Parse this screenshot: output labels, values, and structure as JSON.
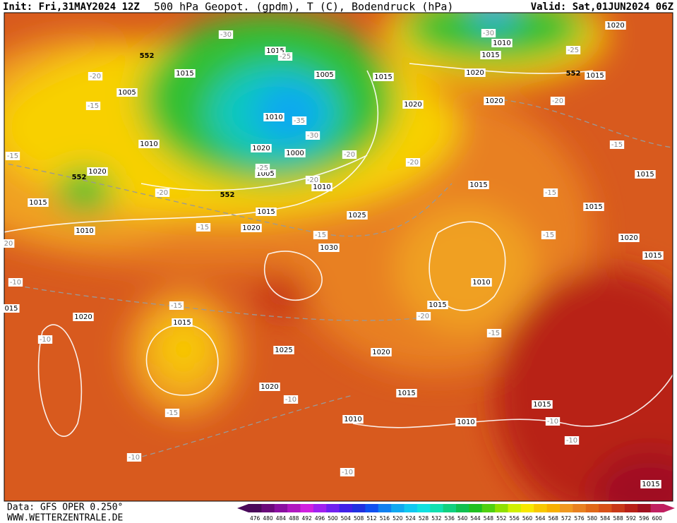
{
  "header": {
    "init": "Init: Fri,31MAY2024 12Z",
    "title": "500 hPa Geopot. (gpdm), T (C), Bodendruck (hPa)",
    "valid": "Valid: Sat,01JUN2024 06Z"
  },
  "footer": {
    "data": "Data: GFS OPER 0.250°",
    "site": "WWW.WETTERZENTRALE.DE"
  },
  "scale": {
    "values": [
      476,
      480,
      484,
      488,
      492,
      496,
      500,
      504,
      508,
      512,
      516,
      520,
      524,
      528,
      532,
      536,
      540,
      544,
      548,
      552,
      556,
      560,
      564,
      568,
      572,
      576,
      580,
      584,
      588,
      592,
      596,
      600
    ],
    "colors": [
      "#4a0a5a",
      "#6a0a7a",
      "#8a10a0",
      "#b018c0",
      "#d020e0",
      "#a020f0",
      "#7020f0",
      "#4020e8",
      "#2030e0",
      "#1050f0",
      "#1080f0",
      "#10a8f0",
      "#10c8f0",
      "#10e0e0",
      "#10e0b0",
      "#10d080",
      "#10c050",
      "#20c020",
      "#50d010",
      "#90e000",
      "#d0f000",
      "#f8e800",
      "#f8c800",
      "#f8b000",
      "#f09820",
      "#e88020",
      "#e06818",
      "#d85018",
      "#c83818",
      "#b82018",
      "#a01020",
      "#c02060"
    ]
  },
  "labels": {
    "isobars": [
      "1015",
      "1015",
      "1005",
      "1005",
      "1015",
      "1010",
      "1020",
      "1000",
      "1005",
      "1010",
      "1010",
      "1020",
      "1015",
      "1010",
      "1015",
      "1020",
      "1025",
      "1030",
      "1020",
      "1015",
      "1025",
      "1020",
      "1020",
      "1015",
      "1010",
      "1010",
      "1015",
      "1015",
      "1010",
      "1015",
      "1020",
      "1020",
      "1020",
      "1010",
      "1015",
      "1020",
      "1015",
      "1015",
      "1015",
      "1020",
      "1015",
      "1015",
      "015"
    ],
    "temperatures": [
      "-30",
      "-25",
      "-35",
      "-30",
      "-25",
      "-20",
      "-20",
      "-20",
      "-20",
      "-20",
      "-15",
      "-15",
      "-15",
      "-15",
      "-10",
      "-15",
      "-10",
      "-15",
      "-10",
      "-10",
      "-20",
      "-15",
      "-15",
      "-15",
      "-15",
      "-20",
      "-25",
      "-30",
      "-10",
      "-10",
      "-10",
      "20"
    ],
    "geopotential": [
      "552",
      "552",
      "552",
      "552"
    ]
  }
}
